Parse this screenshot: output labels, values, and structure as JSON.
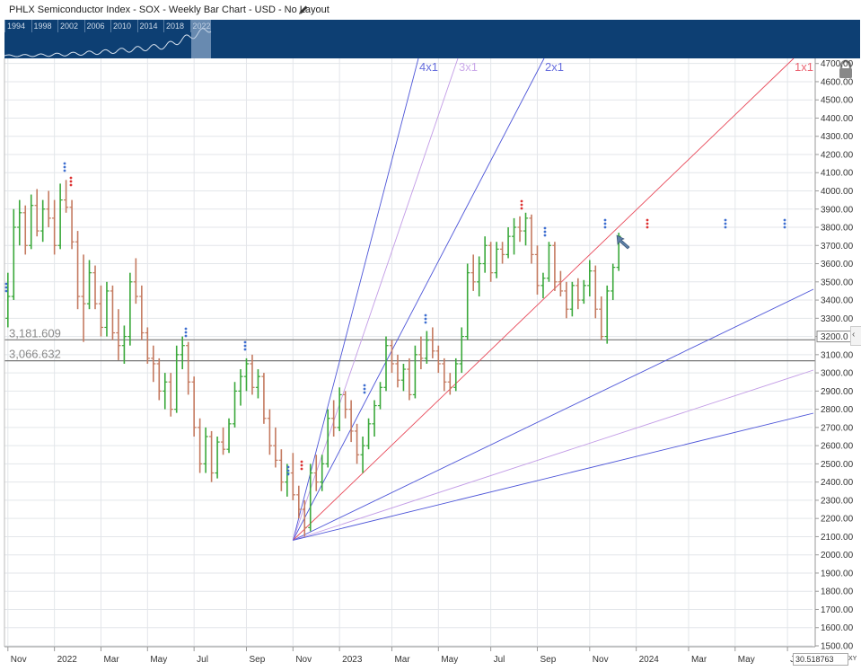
{
  "header": {
    "title": "PHLX Semiconductor Index - SOX - Weekly Bar Chart - USD - No Layout"
  },
  "navigator": {
    "years": [
      "1994",
      "1998",
      "2002",
      "2006",
      "2010",
      "2014",
      "2018",
      "2022"
    ],
    "background_color": "#0d3f73"
  },
  "readout": {
    "value": "30.518763",
    "xy_label": "XY"
  },
  "colors": {
    "up_bar": "#3aa83a",
    "down_bar": "#c47a60",
    "fan_blue": "#4d55d8",
    "fan_violet": "#c29be6",
    "fan_red": "#e84a5a",
    "hline": "#777777",
    "grid": "#e3e6ea"
  },
  "chart_data": {
    "type": "bar",
    "subtype": "ohlc_weekly",
    "ylim": [
      1500,
      4700
    ],
    "y_ticks": [
      "1500.00",
      "1600.00",
      "1700.00",
      "1800.00",
      "1900.00",
      "2000.00",
      "2100.00",
      "2200.00",
      "2300.00",
      "2400.00",
      "2500.00",
      "2600.00",
      "2700.00",
      "2800.00",
      "2900.00",
      "3000.00",
      "3100.00",
      "3200.00",
      "3300.00",
      "3400.00",
      "3500.00",
      "3600.00",
      "3700.00",
      "3800.00",
      "3900.00",
      "4000.00",
      "4100.00",
      "4200.00",
      "4300.00",
      "4400.00",
      "4500.00",
      "4600.00",
      "4700.00"
    ],
    "x_ticks": [
      {
        "label": "Nov",
        "week": 1
      },
      {
        "label": "2022",
        "week": 9
      },
      {
        "label": "Mar",
        "week": 17
      },
      {
        "label": "May",
        "week": 25
      },
      {
        "label": "Jul",
        "week": 33
      },
      {
        "label": "Sep",
        "week": 42
      },
      {
        "label": "Nov",
        "week": 50
      },
      {
        "label": "2023",
        "week": 58
      },
      {
        "label": "Mar",
        "week": 67
      },
      {
        "label": "May",
        "week": 75
      },
      {
        "label": "Jul",
        "week": 84
      },
      {
        "label": "Sep",
        "week": 92
      },
      {
        "label": "Nov",
        "week": 101
      },
      {
        "label": "2024",
        "week": 109
      },
      {
        "label": "Mar",
        "week": 118
      },
      {
        "label": "May",
        "week": 126
      },
      {
        "label": "Ju",
        "week": 135
      }
    ],
    "bars": [
      {
        "o": 3300,
        "h": 3550,
        "l": 3250,
        "c": 3420
      },
      {
        "o": 3420,
        "h": 3900,
        "l": 3400,
        "c": 3800
      },
      {
        "o": 3800,
        "h": 3950,
        "l": 3700,
        "c": 3880
      },
      {
        "o": 3880,
        "h": 3920,
        "l": 3650,
        "c": 3700
      },
      {
        "o": 3700,
        "h": 3980,
        "l": 3680,
        "c": 3920
      },
      {
        "o": 3920,
        "h": 4010,
        "l": 3750,
        "c": 3780
      },
      {
        "o": 3780,
        "h": 3950,
        "l": 3720,
        "c": 3900
      },
      {
        "o": 3900,
        "h": 4000,
        "l": 3800,
        "c": 3850
      },
      {
        "o": 3850,
        "h": 3950,
        "l": 3650,
        "c": 3700
      },
      {
        "o": 3700,
        "h": 4040,
        "l": 3680,
        "c": 3950
      },
      {
        "o": 3950,
        "h": 4060,
        "l": 3880,
        "c": 3910
      },
      {
        "o": 3910,
        "h": 3950,
        "l": 3680,
        "c": 3720
      },
      {
        "o": 3720,
        "h": 3780,
        "l": 3350,
        "c": 3420
      },
      {
        "o": 3420,
        "h": 3650,
        "l": 3170,
        "c": 3380
      },
      {
        "o": 3380,
        "h": 3620,
        "l": 3350,
        "c": 3550
      },
      {
        "o": 3550,
        "h": 3590,
        "l": 3350,
        "c": 3380
      },
      {
        "o": 3380,
        "h": 3480,
        "l": 3200,
        "c": 3250
      },
      {
        "o": 3250,
        "h": 3500,
        "l": 3200,
        "c": 3450
      },
      {
        "o": 3450,
        "h": 3480,
        "l": 3180,
        "c": 3220
      },
      {
        "o": 3220,
        "h": 3350,
        "l": 3070,
        "c": 3150
      },
      {
        "o": 3150,
        "h": 3260,
        "l": 3050,
        "c": 3200
      },
      {
        "o": 3200,
        "h": 3550,
        "l": 3150,
        "c": 3500
      },
      {
        "o": 3500,
        "h": 3630,
        "l": 3380,
        "c": 3420
      },
      {
        "o": 3420,
        "h": 3480,
        "l": 3180,
        "c": 3220
      },
      {
        "o": 3220,
        "h": 3250,
        "l": 3050,
        "c": 3080
      },
      {
        "o": 3080,
        "h": 3150,
        "l": 2950,
        "c": 3050
      },
      {
        "o": 3050,
        "h": 3080,
        "l": 2850,
        "c": 2900
      },
      {
        "o": 2900,
        "h": 3000,
        "l": 2800,
        "c": 2950
      },
      {
        "o": 2950,
        "h": 3000,
        "l": 2760,
        "c": 2800
      },
      {
        "o": 2800,
        "h": 3150,
        "l": 2780,
        "c": 3100
      },
      {
        "o": 3100,
        "h": 3200,
        "l": 3020,
        "c": 3150
      },
      {
        "o": 3150,
        "h": 3170,
        "l": 2880,
        "c": 2950
      },
      {
        "o": 2950,
        "h": 2980,
        "l": 2650,
        "c": 2700
      },
      {
        "o": 2700,
        "h": 2750,
        "l": 2450,
        "c": 2500
      },
      {
        "o": 2500,
        "h": 2700,
        "l": 2450,
        "c": 2650
      },
      {
        "o": 2650,
        "h": 2680,
        "l": 2400,
        "c": 2450
      },
      {
        "o": 2450,
        "h": 2650,
        "l": 2420,
        "c": 2620
      },
      {
        "o": 2620,
        "h": 2700,
        "l": 2550,
        "c": 2580
      },
      {
        "o": 2580,
        "h": 2750,
        "l": 2560,
        "c": 2720
      },
      {
        "o": 2720,
        "h": 2950,
        "l": 2700,
        "c": 2900
      },
      {
        "o": 2900,
        "h": 3020,
        "l": 2820,
        "c": 2980
      },
      {
        "o": 2980,
        "h": 3080,
        "l": 2900,
        "c": 3050
      },
      {
        "o": 3050,
        "h": 3100,
        "l": 2880,
        "c": 2920
      },
      {
        "o": 2920,
        "h": 3020,
        "l": 2860,
        "c": 2980
      },
      {
        "o": 2980,
        "h": 3000,
        "l": 2720,
        "c": 2750
      },
      {
        "o": 2750,
        "h": 2800,
        "l": 2550,
        "c": 2600
      },
      {
        "o": 2600,
        "h": 2700,
        "l": 2480,
        "c": 2520
      },
      {
        "o": 2520,
        "h": 2580,
        "l": 2350,
        "c": 2400
      },
      {
        "o": 2400,
        "h": 2500,
        "l": 2320,
        "c": 2450
      },
      {
        "o": 2450,
        "h": 2560,
        "l": 2300,
        "c": 2330
      },
      {
        "o": 2330,
        "h": 2380,
        "l": 2200,
        "c": 2250
      },
      {
        "o": 2250,
        "h": 2300,
        "l": 2100,
        "c": 2150
      },
      {
        "o": 2150,
        "h": 2500,
        "l": 2130,
        "c": 2450
      },
      {
        "o": 2450,
        "h": 2550,
        "l": 2350,
        "c": 2400
      },
      {
        "o": 2400,
        "h": 2550,
        "l": 2350,
        "c": 2500
      },
      {
        "o": 2500,
        "h": 2800,
        "l": 2480,
        "c": 2750
      },
      {
        "o": 2750,
        "h": 2850,
        "l": 2650,
        "c": 2700
      },
      {
        "o": 2700,
        "h": 2920,
        "l": 2680,
        "c": 2880
      },
      {
        "o": 2880,
        "h": 2900,
        "l": 2750,
        "c": 2800
      },
      {
        "o": 2800,
        "h": 2850,
        "l": 2620,
        "c": 2680
      },
      {
        "o": 2680,
        "h": 2720,
        "l": 2500,
        "c": 2550
      },
      {
        "o": 2550,
        "h": 2650,
        "l": 2450,
        "c": 2600
      },
      {
        "o": 2600,
        "h": 2750,
        "l": 2580,
        "c": 2720
      },
      {
        "o": 2720,
        "h": 2850,
        "l": 2650,
        "c": 2820
      },
      {
        "o": 2820,
        "h": 2950,
        "l": 2800,
        "c": 2920
      },
      {
        "o": 2920,
        "h": 3200,
        "l": 2900,
        "c": 3150
      },
      {
        "o": 3150,
        "h": 3180,
        "l": 3000,
        "c": 3050
      },
      {
        "o": 3050,
        "h": 3100,
        "l": 2920,
        "c": 2960
      },
      {
        "o": 2960,
        "h": 3050,
        "l": 2900,
        "c": 3020
      },
      {
        "o": 3020,
        "h": 3080,
        "l": 2850,
        "c": 2880
      },
      {
        "o": 2880,
        "h": 3150,
        "l": 2860,
        "c": 3100
      },
      {
        "o": 3100,
        "h": 3200,
        "l": 3020,
        "c": 3080
      },
      {
        "o": 3080,
        "h": 3230,
        "l": 3050,
        "c": 3180
      },
      {
        "o": 3180,
        "h": 3250,
        "l": 3080,
        "c": 3120
      },
      {
        "o": 3120,
        "h": 3150,
        "l": 3000,
        "c": 3050
      },
      {
        "o": 3050,
        "h": 3080,
        "l": 2900,
        "c": 2950
      },
      {
        "o": 2950,
        "h": 3000,
        "l": 2880,
        "c": 2920
      },
      {
        "o": 2920,
        "h": 3080,
        "l": 2900,
        "c": 3050
      },
      {
        "o": 3050,
        "h": 3250,
        "l": 3000,
        "c": 3200
      },
      {
        "o": 3200,
        "h": 3600,
        "l": 3180,
        "c": 3550
      },
      {
        "o": 3550,
        "h": 3650,
        "l": 3450,
        "c": 3500
      },
      {
        "o": 3500,
        "h": 3640,
        "l": 3420,
        "c": 3600
      },
      {
        "o": 3600,
        "h": 3750,
        "l": 3550,
        "c": 3700
      },
      {
        "o": 3700,
        "h": 3720,
        "l": 3500,
        "c": 3550
      },
      {
        "o": 3550,
        "h": 3720,
        "l": 3520,
        "c": 3680
      },
      {
        "o": 3680,
        "h": 3720,
        "l": 3600,
        "c": 3650
      },
      {
        "o": 3650,
        "h": 3800,
        "l": 3630,
        "c": 3750
      },
      {
        "o": 3750,
        "h": 3850,
        "l": 3650,
        "c": 3800
      },
      {
        "o": 3800,
        "h": 3860,
        "l": 3720,
        "c": 3780
      },
      {
        "o": 3780,
        "h": 3880,
        "l": 3700,
        "c": 3850
      },
      {
        "o": 3850,
        "h": 3870,
        "l": 3600,
        "c": 3650
      },
      {
        "o": 3650,
        "h": 3700,
        "l": 3430,
        "c": 3480
      },
      {
        "o": 3480,
        "h": 3550,
        "l": 3410,
        "c": 3520
      },
      {
        "o": 3520,
        "h": 3720,
        "l": 3500,
        "c": 3700
      },
      {
        "o": 3700,
        "h": 3720,
        "l": 3450,
        "c": 3500
      },
      {
        "o": 3500,
        "h": 3560,
        "l": 3420,
        "c": 3450
      },
      {
        "o": 3450,
        "h": 3500,
        "l": 3300,
        "c": 3350
      },
      {
        "o": 3350,
        "h": 3500,
        "l": 3310,
        "c": 3480
      },
      {
        "o": 3480,
        "h": 3520,
        "l": 3350,
        "c": 3400
      },
      {
        "o": 3400,
        "h": 3510,
        "l": 3380,
        "c": 3480
      },
      {
        "o": 3480,
        "h": 3620,
        "l": 3420,
        "c": 3560
      },
      {
        "o": 3560,
        "h": 3590,
        "l": 3300,
        "c": 3350
      },
      {
        "o": 3350,
        "h": 3420,
        "l": 3180,
        "c": 3200
      },
      {
        "o": 3200,
        "h": 3480,
        "l": 3160,
        "c": 3450
      },
      {
        "o": 3450,
        "h": 3600,
        "l": 3400,
        "c": 3580
      },
      {
        "o": 3580,
        "h": 3770,
        "l": 3560,
        "c": 3750
      }
    ],
    "horizontal_lines": [
      {
        "label": "3,181.609",
        "value": 3181.609,
        "label_position": "left"
      },
      {
        "label": "3,066.632",
        "value": 3066.632,
        "label_position": "left"
      }
    ],
    "gann_fan": {
      "origin": {
        "week": 50,
        "value": 2080
      },
      "lines": [
        {
          "label": "4x1",
          "color_key": "fan_blue"
        },
        {
          "label": "3x1",
          "color_key": "fan_violet"
        },
        {
          "label": "2x1",
          "color_key": "fan_blue"
        },
        {
          "label": "1x1",
          "color_key": "fan_red"
        },
        {
          "label": "",
          "color_key": "fan_blue"
        },
        {
          "label": "",
          "color_key": "fan_violet"
        },
        {
          "label": "",
          "color_key": "fan_blue"
        }
      ]
    },
    "y_axis_current_label": "3200.0",
    "grid": true
  }
}
